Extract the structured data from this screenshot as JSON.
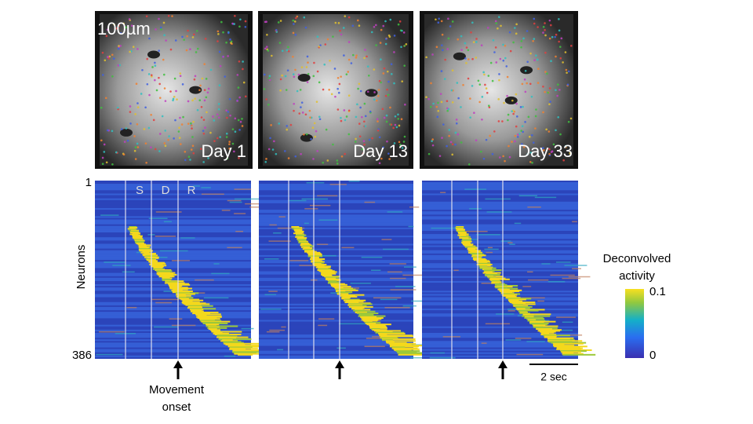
{
  "images": [
    {
      "label": "Day 1",
      "scale": "100µm"
    },
    {
      "label": "Day 13"
    },
    {
      "label": "Day 33"
    }
  ],
  "heatmap": {
    "epochs": [
      "S",
      "D",
      "R"
    ],
    "y_axis": {
      "label": "Neurons",
      "top": "1",
      "bottom": "386"
    },
    "event": {
      "line1": "Movement",
      "line2": "onset"
    },
    "scale_bar": "2 sec"
  },
  "colorbar": {
    "title_line1": "Deconvolved",
    "title_line2": "activity",
    "max": "0.1",
    "min": "0"
  }
}
